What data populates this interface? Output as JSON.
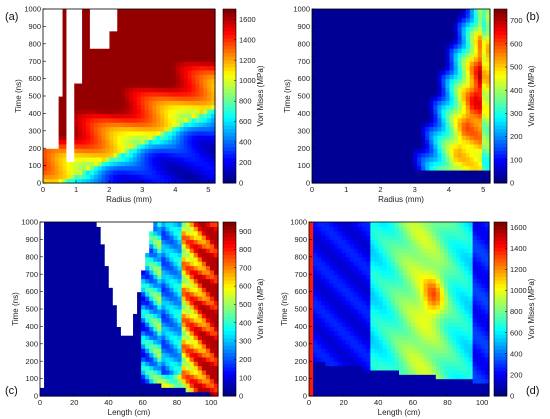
{
  "chart_data": [
    {
      "panel_label": "(a)",
      "type": "heatmap",
      "xlabel": "Radius (mm)",
      "ylabel": "Time (ns)",
      "xlim": [
        0,
        5.2
      ],
      "ylim": [
        0,
        1000
      ],
      "xticks": [
        "0",
        "1",
        "2",
        "3",
        "4",
        "5"
      ],
      "xtick_values": [
        0,
        1,
        2,
        3,
        4,
        5
      ],
      "yticks": [
        "0",
        "100",
        "200",
        "300",
        "400",
        "500",
        "600",
        "700",
        "800",
        "900",
        "1000"
      ],
      "ytick_values": [
        0,
        100,
        200,
        300,
        400,
        500,
        600,
        700,
        800,
        900,
        1000
      ],
      "colorbar_label": "Von Mises (MPa)",
      "colorbar_range": [
        0,
        1700
      ],
      "colorbar_ticks": [
        "0",
        "200",
        "400",
        "600",
        "800",
        "1000",
        "1200",
        "1400",
        "1600"
      ],
      "colorbar_tick_values": [
        0,
        200,
        400,
        600,
        800,
        1000,
        1200,
        1400,
        1600
      ],
      "description_of_field": "high-stress front propagating outward from the axis with time; front radius grows approx. linearly from 0.7 mm at 0 ns to 5 mm at 400 ns; blank (no data) regions near r=0.5-2.2 mm at late times",
      "front_points": [
        {
          "x": 0.7,
          "y": 0
        },
        {
          "x": 2.0,
          "y": 100
        },
        {
          "x": 3.0,
          "y": 200
        },
        {
          "x": 4.0,
          "y": 300
        },
        {
          "x": 5.0,
          "y": 400
        }
      ],
      "peak_value": 1650
    },
    {
      "panel_label": "(b)",
      "type": "heatmap",
      "xlabel": "Radius (mm)",
      "ylabel": "Time (ns)",
      "xlim": [
        0,
        5.2
      ],
      "ylim": [
        0,
        1000
      ],
      "xticks": [
        "0",
        "1",
        "2",
        "3",
        "4",
        "5"
      ],
      "xtick_values": [
        0,
        1,
        2,
        3,
        4,
        5
      ],
      "yticks": [
        "0",
        "100",
        "200",
        "300",
        "400",
        "500",
        "600",
        "700",
        "800",
        "900",
        "1000"
      ],
      "ytick_values": [
        0,
        100,
        200,
        300,
        400,
        500,
        600,
        700,
        800,
        900,
        1000
      ],
      "colorbar_label": "Von Mises (MPa)",
      "colorbar_range": [
        0,
        750
      ],
      "colorbar_ticks": [
        "0",
        "100",
        "200",
        "300",
        "400",
        "500",
        "600",
        "700"
      ],
      "colorbar_tick_values": [
        0,
        100,
        200,
        300,
        400,
        500,
        600,
        700
      ],
      "description_of_field": "stress concentrated near outer radius (4.5-5 mm) at late times; low elsewhere",
      "front_points": [
        {
          "x": 3.5,
          "y": 150
        },
        {
          "x": 4.0,
          "y": 400
        },
        {
          "x": 4.5,
          "y": 700
        },
        {
          "x": 4.9,
          "y": 1000
        }
      ],
      "peak_value": 720
    },
    {
      "panel_label": "(c)",
      "type": "heatmap",
      "xlabel": "Length (cm)",
      "ylabel": "Time (ns)",
      "xlim": [
        0,
        104
      ],
      "ylim": [
        0,
        1000
      ],
      "xticks": [
        "0",
        "20",
        "40",
        "60",
        "80",
        "100"
      ],
      "xtick_values": [
        0,
        20,
        40,
        60,
        80,
        100
      ],
      "yticks": [
        "0",
        "100",
        "200",
        "300",
        "400",
        "500",
        "600",
        "700",
        "800",
        "900",
        "1000"
      ],
      "ytick_values": [
        0,
        100,
        200,
        300,
        400,
        500,
        600,
        700,
        800,
        900,
        1000
      ],
      "colorbar_label": "Von Mises (MPa)",
      "colorbar_range": [
        0,
        950
      ],
      "colorbar_ticks": [
        "0",
        "100",
        "200",
        "300",
        "400",
        "500",
        "600",
        "700",
        "800",
        "900"
      ],
      "colorbar_tick_values": [
        0,
        100,
        200,
        300,
        400,
        500,
        600,
        700,
        800,
        900
      ],
      "description_of_field": "stress wave arriving at the far end (80-104 cm) after ~50 ns with high values near 90-100 cm; blank regions near x=0-3 cm and x=34-66 cm",
      "peak_value": 900
    },
    {
      "panel_label": "(d)",
      "type": "heatmap",
      "xlabel": "Length (cm)",
      "ylabel": "Time (ns)",
      "xlim": [
        0,
        104
      ],
      "ylim": [
        0,
        1000
      ],
      "xticks": [
        "0",
        "20",
        "40",
        "60",
        "80",
        "100"
      ],
      "xtick_values": [
        0,
        20,
        40,
        60,
        80,
        100
      ],
      "yticks": [
        "0",
        "100",
        "200",
        "300",
        "400",
        "500",
        "600",
        "700",
        "800",
        "900",
        "1000"
      ],
      "ytick_values": [
        0,
        100,
        200,
        300,
        400,
        500,
        600,
        700,
        800,
        900,
        1000
      ],
      "colorbar_label": "Von Mises (MPa)",
      "colorbar_range": [
        0,
        1650
      ],
      "colorbar_ticks": [
        "0",
        "200",
        "400",
        "600",
        "800",
        "1000",
        "1200",
        "1400",
        "1600"
      ],
      "colorbar_tick_values": [
        0,
        200,
        400,
        600,
        800,
        1000,
        1200,
        1400,
        1600
      ],
      "description_of_field": "broad band of elevated stress between ~45 and 90 cm after ~150 ns with a hot spot near 70-75 cm around 500-650 ns",
      "peak_value": 1400
    }
  ]
}
